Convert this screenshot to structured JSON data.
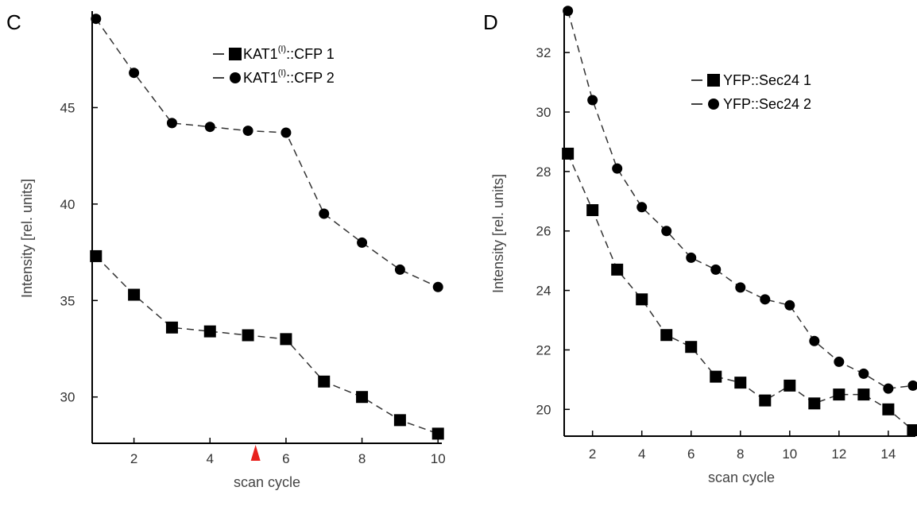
{
  "chart_data": [
    {
      "panel": "C",
      "type": "line",
      "xlabel": "scan cycle",
      "ylabel": "Intensity [rel. units]",
      "xlim": [
        0.9,
        10.1
      ],
      "ylim": [
        27.6,
        50
      ],
      "xticks": [
        2,
        4,
        6,
        8,
        10
      ],
      "yticks": [
        30,
        35,
        40,
        45
      ],
      "x": [
        1,
        2,
        3,
        4,
        5,
        6,
        7,
        8,
        9,
        10
      ],
      "series": [
        {
          "label_main": "KAT1",
          "label_sup": "(I)",
          "label_rest": "::CFP 1",
          "marker": "square",
          "values": [
            37.3,
            35.3,
            33.6,
            33.4,
            33.2,
            33.0,
            30.8,
            30.0,
            28.8,
            28.1
          ]
        },
        {
          "label_main": "KAT1",
          "label_sup": "(I)",
          "label_rest": "::CFP 2",
          "marker": "circle",
          "values": [
            49.6,
            46.8,
            44.2,
            44.0,
            43.8,
            43.7,
            39.5,
            38.0,
            36.6,
            35.7
          ]
        }
      ],
      "annotation": {
        "type": "red-triangle-marker",
        "x": 5.2
      },
      "legend": "top-right",
      "grid": false
    },
    {
      "panel": "D",
      "type": "line",
      "xlabel": "scan cycle",
      "ylabel": "Intensity [rel. units]",
      "xlim": [
        0.85,
        15.1
      ],
      "ylim": [
        19.1,
        33.5
      ],
      "xticks": [
        2,
        4,
        6,
        8,
        10,
        12,
        14
      ],
      "yticks": [
        20,
        22,
        24,
        26,
        28,
        30,
        32
      ],
      "x": [
        1,
        2,
        3,
        4,
        5,
        6,
        7,
        8,
        9,
        10,
        11,
        12,
        13,
        14,
        15
      ],
      "series": [
        {
          "label_main": "YFP::Sec24 1",
          "label_sup": "",
          "label_rest": "",
          "marker": "square",
          "values": [
            28.6,
            26.7,
            24.7,
            23.7,
            22.5,
            22.1,
            21.1,
            20.9,
            20.3,
            20.8,
            20.2,
            20.5,
            20.5,
            20.0,
            19.3
          ]
        },
        {
          "label_main": "YFP::Sec24 2",
          "label_sup": "",
          "label_rest": "",
          "marker": "circle",
          "values": [
            33.4,
            30.4,
            28.1,
            26.8,
            26.0,
            25.1,
            24.7,
            24.1,
            23.7,
            23.5,
            22.3,
            21.6,
            21.2,
            20.7,
            20.8
          ]
        }
      ],
      "legend": "top-right",
      "grid": false
    }
  ]
}
